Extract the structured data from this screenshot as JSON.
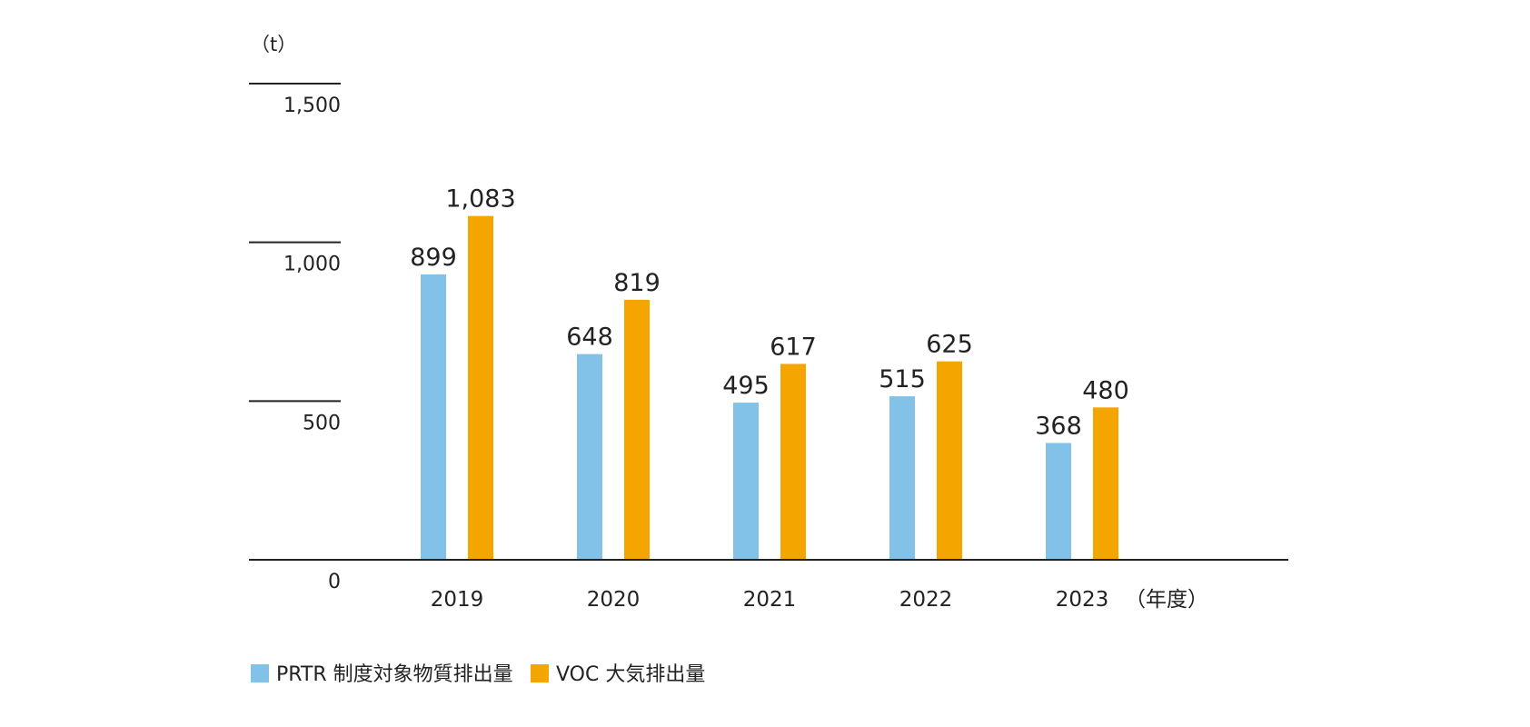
{
  "chart_data": {
    "type": "bar",
    "y_unit_label": "（t）",
    "x_unit_label": "（年度）",
    "categories": [
      "2019",
      "2020",
      "2021",
      "2022",
      "2023"
    ],
    "series": [
      {
        "name": "PRTR 制度対象物質排出量",
        "color": "#82c1e8",
        "values": [
          899,
          648,
          495,
          515,
          368
        ]
      },
      {
        "name": "VOC 大気排出量",
        "color": "#f5a500",
        "values": [
          1083,
          819,
          617,
          625,
          480
        ]
      }
    ],
    "value_labels": [
      [
        "899",
        "648",
        "495",
        "515",
        "368"
      ],
      [
        "1,083",
        "819",
        "617",
        "625",
        "480"
      ]
    ],
    "y_ticks": [
      0,
      500,
      1000,
      1500
    ],
    "y_tick_labels": [
      "0",
      "500",
      "1,000",
      "1,500"
    ],
    "ylim": [
      0,
      1500
    ],
    "grid": false,
    "legend_position": "bottom-left"
  }
}
